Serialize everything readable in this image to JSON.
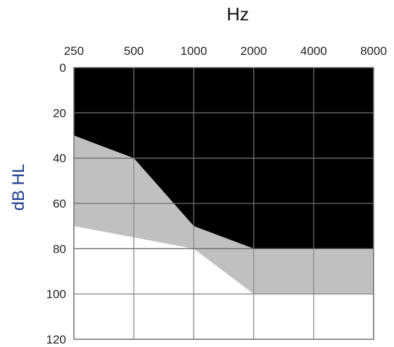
{
  "chart_data": {
    "type": "area",
    "title": "Hz",
    "xlabel": "",
    "ylabel": "dB HL",
    "x_categories": [
      "250",
      "500",
      "1000",
      "2000",
      "4000",
      "8000"
    ],
    "y_ticks": [
      "0",
      "20",
      "40",
      "60",
      "80",
      "100",
      "120"
    ],
    "ylim": [
      0,
      120
    ],
    "y_inverted": true,
    "grid": true,
    "series": [
      {
        "fill": "black",
        "upper_db": [
          0,
          0,
          0,
          0,
          0,
          0
        ],
        "lower_db": [
          30,
          40,
          70,
          80,
          80,
          80
        ]
      },
      {
        "fill": "gray",
        "upper_db": [
          30,
          40,
          70,
          80,
          80,
          80
        ],
        "lower_db": [
          70,
          75,
          80,
          100,
          100,
          100
        ]
      }
    ],
    "colors": {
      "background": "#ffffff",
      "black_region": "#000000",
      "gray_region": "#c0c0c0",
      "grid_on_black": "#6e6e6e",
      "grid_on_light": "#8a8a8a",
      "frame": "#777777"
    }
  }
}
